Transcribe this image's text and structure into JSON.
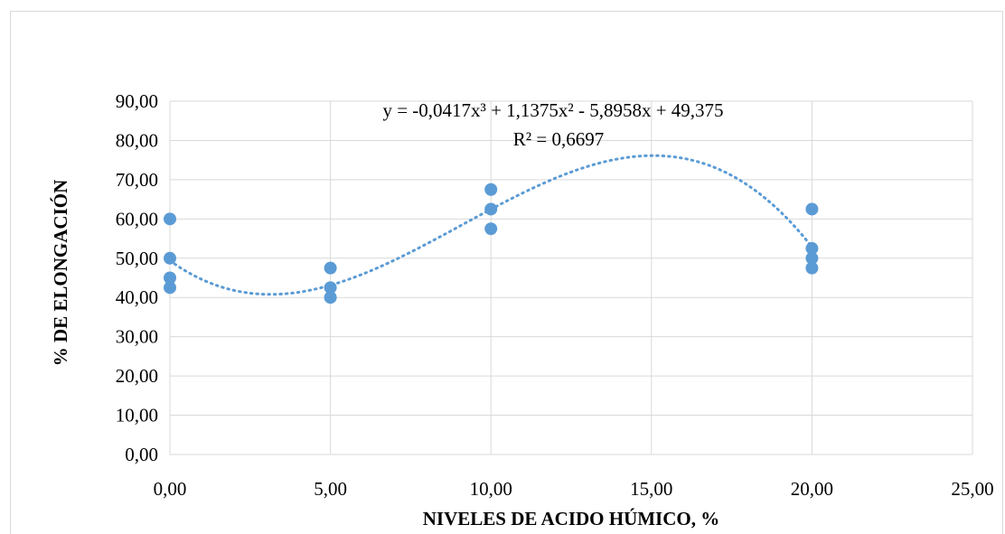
{
  "chart_data": {
    "type": "scatter",
    "xlabel": "NIVELES DE ACIDO HÚMICO, %",
    "ylabel": "% DE ELONGACIÓN",
    "xlim": [
      0,
      25
    ],
    "ylim": [
      0,
      90
    ],
    "xticks": [
      0,
      5,
      10,
      15,
      20,
      25
    ],
    "yticks": [
      0,
      10,
      20,
      30,
      40,
      50,
      60,
      70,
      80,
      90
    ],
    "xtick_labels": [
      "0,00",
      "5,00",
      "10,00",
      "15,00",
      "20,00",
      "25,00"
    ],
    "ytick_labels": [
      "0,00",
      "10,00",
      "20,00",
      "30,00",
      "40,00",
      "50,00",
      "60,00",
      "70,00",
      "80,00",
      "90,00"
    ],
    "grid": true,
    "legend": "none",
    "series": [
      {
        "color": "#5b9bd5",
        "points": [
          {
            "x": 0,
            "y": 60
          },
          {
            "x": 0,
            "y": 50
          },
          {
            "x": 0,
            "y": 45
          },
          {
            "x": 0,
            "y": 42.5
          },
          {
            "x": 5,
            "y": 47.5
          },
          {
            "x": 5,
            "y": 42.5
          },
          {
            "x": 5,
            "y": 40
          },
          {
            "x": 10,
            "y": 67.5
          },
          {
            "x": 10,
            "y": 62.5
          },
          {
            "x": 10,
            "y": 57.5
          },
          {
            "x": 20,
            "y": 62.5
          },
          {
            "x": 20,
            "y": 52.5
          },
          {
            "x": 20,
            "y": 50
          },
          {
            "x": 20,
            "y": 47.5
          }
        ]
      }
    ],
    "trendline": {
      "kind": "polynomial",
      "order": 3,
      "coefficients": [
        -0.0417,
        1.1375,
        -5.8958,
        49.375
      ],
      "x_range": [
        0,
        20
      ],
      "style": "dotted",
      "color": "#5b9bd5"
    },
    "annotations": {
      "equation": "y = -0,0417x³ + 1,1375x² - 5,8958x + 49,375",
      "r_squared": "R² = 0,6697"
    }
  }
}
